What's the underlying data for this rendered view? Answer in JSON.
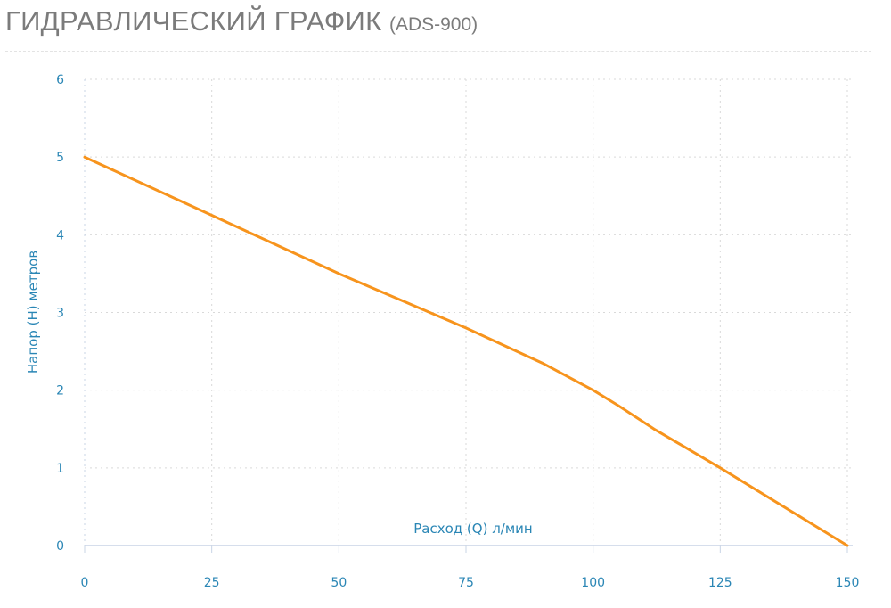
{
  "header": {
    "title": "ГИДРАВЛИЧЕСКИЙ ГРАФИК",
    "model": "(ADS-900)"
  },
  "colors": {
    "line": "#f7941d",
    "axis_text": "#2a86b5",
    "grid": "#d9d9d9",
    "axis": "#c8d4e6"
  },
  "chart_data": {
    "type": "line",
    "title": "ГИДРАВЛИЧЕСКИЙ ГРАФИК (ADS-900)",
    "xlabel": "Расход (Q) л/мин",
    "ylabel": "Напор (H) метров",
    "xlim": [
      0,
      150
    ],
    "ylim": [
      0,
      6
    ],
    "x_ticks": [
      0,
      25,
      50,
      75,
      100,
      125,
      150
    ],
    "y_ticks": [
      0,
      1,
      2,
      3,
      4,
      5,
      6
    ],
    "grid": true,
    "series": [
      {
        "x": [
          0,
          25,
          50,
          75,
          90,
          100,
          105,
          112,
          125,
          150
        ],
        "values": [
          5.0,
          4.25,
          3.5,
          2.8,
          2.35,
          2.0,
          1.8,
          1.5,
          1.0,
          0.0
        ]
      }
    ]
  }
}
